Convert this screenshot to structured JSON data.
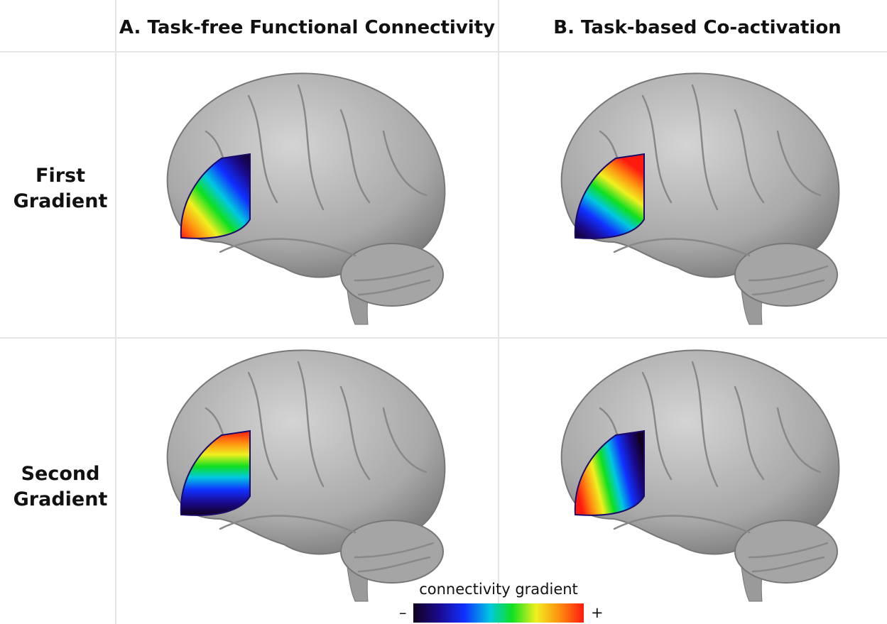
{
  "column_headers": [
    "A. Task-free Functional Connectivity",
    "B. Task-based Co-activation"
  ],
  "row_labels": [
    "First Gradient",
    "Second Gradient"
  ],
  "colorbar": {
    "title": "connectivity gradient",
    "min_label": "–",
    "max_label": "+"
  }
}
